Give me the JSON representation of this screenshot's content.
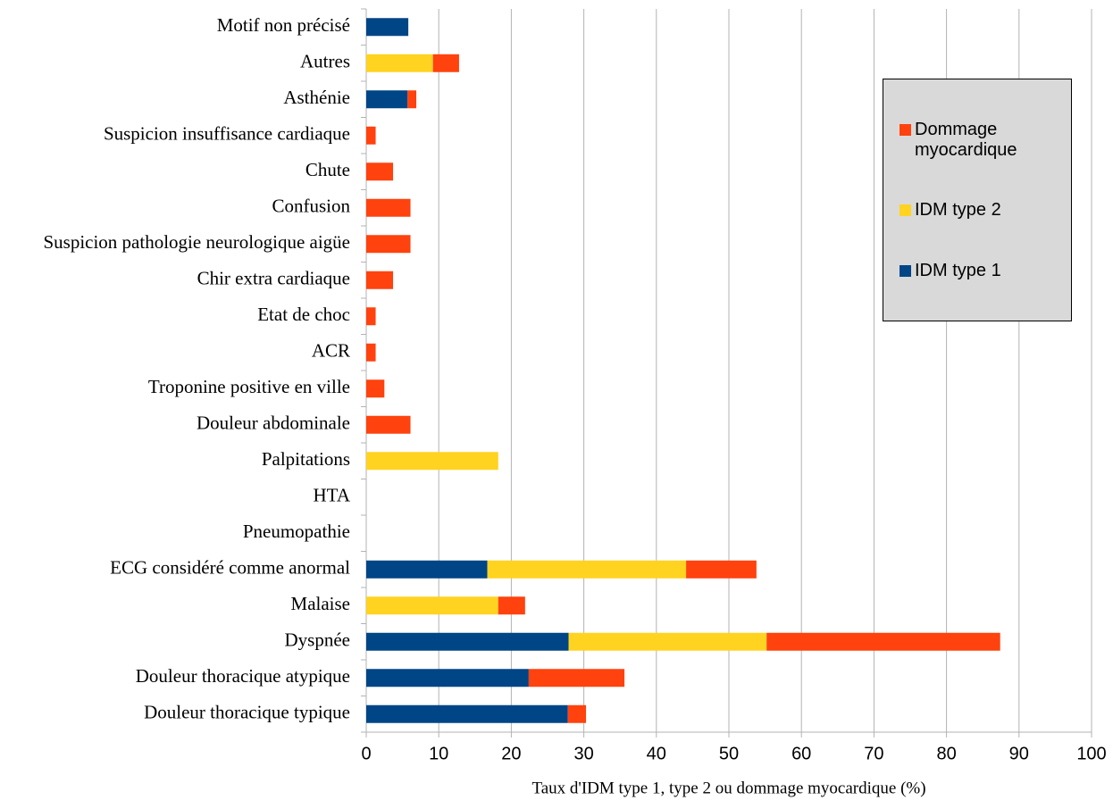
{
  "chart_data": {
    "type": "stacked-barh",
    "xlabel": "Taux d'IDM type 1, type 2 ou dommage myocardique (%)",
    "categories": [
      "Douleur thoracique typique",
      "Douleur thoracique atypique",
      "Dyspnée",
      "Malaise",
      "ECG considéré comme anormal",
      "Pneumopathie",
      "HTA",
      "Palpitations",
      "Douleur abdominale",
      "Troponine positive en ville",
      "ACR",
      "Etat de choc",
      "Chir extra cardiaque",
      "Suspicion pathologie neurologique aigüe",
      "Confusion",
      "Chute",
      "Suspicion insuffisance cardiaque",
      "Asthénie",
      "Autres",
      "Motif non précisé"
    ],
    "series": [
      {
        "name": "IDM type 1",
        "color": "#004586",
        "values": [
          27.8,
          22.4,
          27.9,
          0,
          16.7,
          0,
          0,
          0,
          0,
          0,
          0,
          0,
          0,
          0,
          0,
          0,
          0,
          5.7,
          0,
          5.8
        ]
      },
      {
        "name": "IDM type 2",
        "color": "#ffd320",
        "values": [
          0,
          0,
          27.3,
          18.2,
          27.4,
          0,
          0,
          18.2,
          0,
          0,
          0,
          0,
          0,
          0,
          0,
          0,
          0,
          0,
          9.2,
          0
        ]
      },
      {
        "name": "Dommage myocardique",
        "color": "#ff420e",
        "values": [
          2.5,
          13.2,
          32.2,
          3.7,
          9.7,
          0,
          0,
          0,
          6.1,
          2.5,
          1.3,
          1.3,
          3.7,
          6.1,
          6.1,
          3.7,
          1.3,
          1.2,
          3.6,
          0
        ]
      }
    ],
    "xlim": [
      0,
      100
    ],
    "xticks": [
      0,
      10,
      20,
      30,
      40,
      50,
      60,
      70,
      80,
      90,
      100
    ],
    "grid": true
  }
}
